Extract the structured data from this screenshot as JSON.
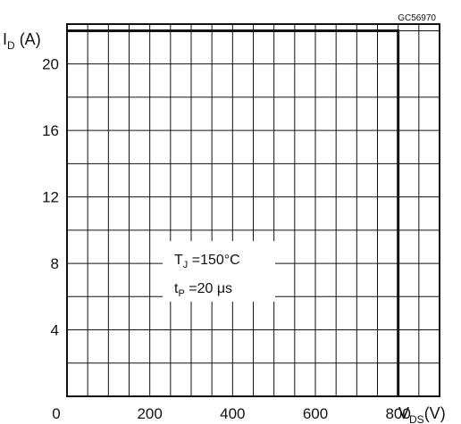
{
  "chart_data": {
    "type": "line",
    "figure_code": "GC56970",
    "y_label": {
      "main": "I",
      "sub": "D",
      "unit": " (A)"
    },
    "x_label": {
      "main": "V",
      "sub": "DS",
      "unit": "(V)"
    },
    "xlim": [
      0,
      900
    ],
    "ylim": [
      0,
      22.4
    ],
    "x_grid_step": 50,
    "y_grid_step": 2,
    "x_ticks": [
      {
        "value": 0,
        "label": "0"
      },
      {
        "value": 200,
        "label": "200"
      },
      {
        "value": 400,
        "label": "400"
      },
      {
        "value": 600,
        "label": "600"
      },
      {
        "value": 800,
        "label": "800"
      }
    ],
    "y_ticks": [
      {
        "value": 4,
        "label": "4"
      },
      {
        "value": 8,
        "label": "8"
      },
      {
        "value": 12,
        "label": "12"
      },
      {
        "value": 16,
        "label": "16"
      },
      {
        "value": 20,
        "label": "20"
      }
    ],
    "grid": true,
    "series": [
      {
        "x": [
          0,
          800,
          800
        ],
        "y": [
          22,
          22,
          0
        ]
      }
    ],
    "annotation": {
      "lines": [
        {
          "main": "T",
          "sub": "J",
          "rest": " =150°C"
        },
        {
          "main": "t",
          "sub": "P",
          "rest": " =20 μs"
        }
      ]
    }
  }
}
